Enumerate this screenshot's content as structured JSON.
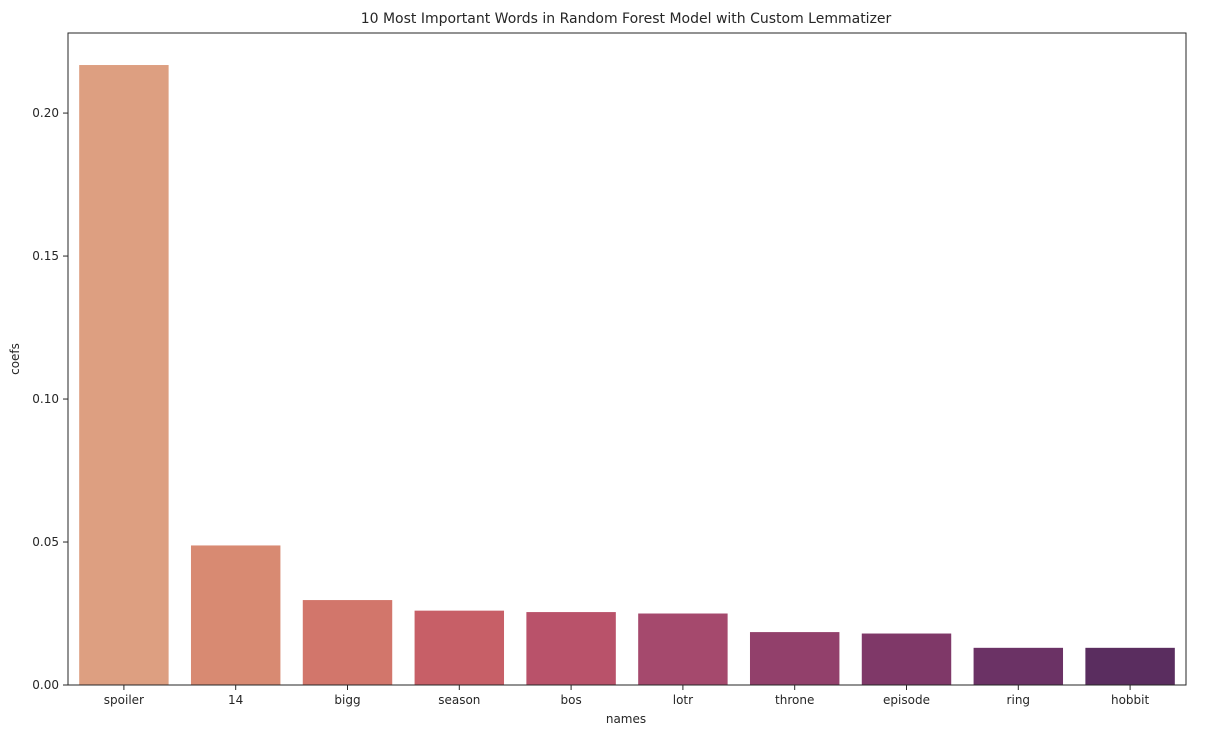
{
  "chart_data": {
    "type": "bar",
    "title": "10 Most Important Words in Random Forest Model with Custom Lemmatizer",
    "xlabel": "names",
    "ylabel": "coefs",
    "categories": [
      "spoiler",
      "14",
      "bigg",
      "season",
      "bos",
      "lotr",
      "throne",
      "episode",
      "ring",
      "hobbit"
    ],
    "values": [
      0.2168,
      0.0488,
      0.0297,
      0.026,
      0.0255,
      0.025,
      0.0185,
      0.018,
      0.013,
      0.013
    ],
    "colors": [
      "#dd9f81",
      "#d88a72",
      "#d2766b",
      "#c75f67",
      "#b9526a",
      "#a5496d",
      "#92406b",
      "#7f3868",
      "#6b3265",
      "#5a2d5f"
    ],
    "ylim": [
      0,
      0.228
    ],
    "yticks": [
      0.0,
      0.05,
      0.1,
      0.15,
      0.2
    ],
    "ytick_labels": [
      "0.00",
      "0.05",
      "0.10",
      "0.15",
      "0.20"
    ],
    "grid": false,
    "legend": "none"
  }
}
